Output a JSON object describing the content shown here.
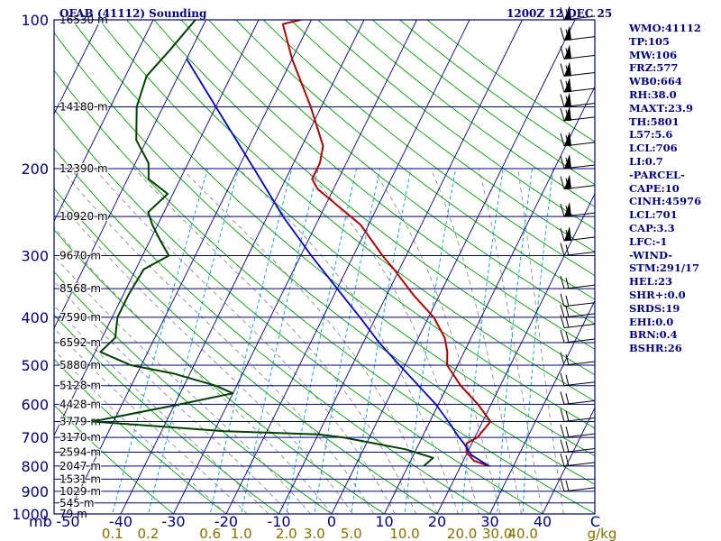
{
  "header": {
    "title": "OFAB (41112) Sounding",
    "time": "1200Z 12 DEC 25"
  },
  "colors": {
    "navy": "#000080",
    "dry_adiabat": "#00a000",
    "moist_adiabat": "#808080",
    "mixing_ratio": "#00a0c0",
    "temperature": "#b00000",
    "dewpoint": "#004000",
    "parcel": "#0000c0",
    "wind": "#000000",
    "tick_temp": "#000080",
    "tick_mix": "#807000"
  },
  "indices": [
    "WMO:41112",
    "TP:105",
    "MW:106",
    "FRZ:577",
    "WB0:664",
    "RH:38.0",
    "MAXT:23.9",
    "TH:5801",
    "L57:5.6",
    "LCL:706",
    "LI:0.7",
    "-PARCEL-",
    "CAPE:10",
    "CINH:45976",
    "LCL:701",
    "CAP:3.3",
    "LFC:-1",
    "-WIND-",
    "STM:291/17",
    "HEL:23",
    "SHR+:0.0",
    "SRDS:19",
    "EHI:0.0",
    "BRN:0.4",
    "BSHR:26"
  ],
  "chart_data": {
    "type": "line",
    "subtype": "skew-t log-p sounding",
    "xlabel": "",
    "ylabel": "",
    "pressure_axis": {
      "unit_label": "mb",
      "range": [
        1000,
        100
      ],
      "scale": "log",
      "tick_labels": [
        "100",
        "200",
        "300",
        "400",
        "500",
        "600",
        "700",
        "800",
        "900",
        "1000"
      ]
    },
    "temperature_axis": {
      "range": [
        -50,
        50
      ],
      "tick_labels": [
        "-50",
        "-40",
        "-30",
        "-20",
        "-10",
        "0",
        "10",
        "20",
        "30",
        "40",
        "C"
      ]
    },
    "mixing_ratio_axis": {
      "unit_label": "g/kg",
      "tick_labels": [
        "0.1",
        "0.2",
        "0.6",
        "1.0",
        "2.0",
        "3.0",
        "5.0",
        "10.0",
        "20.0",
        "30.0",
        "40.0"
      ],
      "values": [
        0.1,
        0.2,
        0.6,
        1.0,
        2.0,
        3.0,
        5.0,
        10.0,
        20.0,
        30.0,
        40.0
      ]
    },
    "height_levels": [
      {
        "p": 100,
        "label": "16530 m"
      },
      {
        "p": 150,
        "label": "14180 m"
      },
      {
        "p": 200,
        "label": "12390 m"
      },
      {
        "p": 250,
        "label": "10920 m"
      },
      {
        "p": 300,
        "label": "9670 m"
      },
      {
        "p": 350,
        "label": "8568 m"
      },
      {
        "p": 400,
        "label": "7590 m"
      },
      {
        "p": 450,
        "label": "6592 m"
      },
      {
        "p": 500,
        "label": "5880 m"
      },
      {
        "p": 550,
        "label": "5128 m"
      },
      {
        "p": 600,
        "label": "4428 m"
      },
      {
        "p": 650,
        "label": "3779 m"
      },
      {
        "p": 700,
        "label": "3170 m"
      },
      {
        "p": 750,
        "label": "2594 m"
      },
      {
        "p": 800,
        "label": "2047 m"
      },
      {
        "p": 850,
        "label": "1531 m"
      },
      {
        "p": 900,
        "label": "1029 m"
      },
      {
        "p": 950,
        "label": "545 m"
      },
      {
        "p": 1000,
        "label": "79 m"
      }
    ],
    "series": [
      {
        "key": "temperature",
        "points": [
          [
            800,
            25.4
          ],
          [
            780,
            22.0
          ],
          [
            750,
            19.8
          ],
          [
            720,
            19.0
          ],
          [
            700,
            20.5
          ],
          [
            650,
            21.5
          ],
          [
            600,
            17.5
          ],
          [
            550,
            12.5
          ],
          [
            500,
            8.0
          ],
          [
            470,
            6.8
          ],
          [
            440,
            5.0
          ],
          [
            400,
            1.0
          ],
          [
            360,
            -5.0
          ],
          [
            320,
            -11.0
          ],
          [
            300,
            -14.5
          ],
          [
            260,
            -21.5
          ],
          [
            240,
            -27.0
          ],
          [
            220,
            -33.0
          ],
          [
            210,
            -35.0
          ],
          [
            195,
            -35.0
          ],
          [
            180,
            -36.0
          ],
          [
            150,
            -42.0
          ],
          [
            120,
            -50.0
          ],
          [
            102,
            -55.0
          ],
          [
            100,
            -52.0
          ],
          [
            95,
            -50.0
          ]
        ]
      },
      {
        "key": "dewpoint",
        "points": [
          [
            800,
            13.0
          ],
          [
            770,
            14.0
          ],
          [
            740,
            8.0
          ],
          [
            700,
            -5.0
          ],
          [
            690,
            -10.0
          ],
          [
            680,
            -28.0
          ],
          [
            650,
            -54.0
          ],
          [
            600,
            -39.0
          ],
          [
            570,
            -30.0
          ],
          [
            550,
            -34.0
          ],
          [
            520,
            -43.0
          ],
          [
            500,
            -52.0
          ],
          [
            470,
            -59.0
          ],
          [
            440,
            -57.5
          ],
          [
            400,
            -59.0
          ],
          [
            360,
            -59.0
          ],
          [
            320,
            -58.5
          ],
          [
            300,
            -55.0
          ],
          [
            280,
            -58.0
          ],
          [
            260,
            -61.0
          ],
          [
            245,
            -63.0
          ],
          [
            225,
            -61.0
          ],
          [
            210,
            -66.0
          ],
          [
            195,
            -67.5
          ],
          [
            175,
            -72.0
          ],
          [
            150,
            -75.0
          ],
          [
            130,
            -76.0
          ],
          [
            115,
            -74.0
          ],
          [
            100,
            -72.0
          ]
        ]
      },
      {
        "key": "parcel",
        "points": [
          [
            800,
            25.4
          ],
          [
            760,
            21.0
          ],
          [
            720,
            18.5
          ],
          [
            700,
            17.0
          ],
          [
            650,
            13.5
          ],
          [
            600,
            9.5
          ],
          [
            550,
            4.5
          ],
          [
            500,
            -1.0
          ],
          [
            450,
            -7.0
          ],
          [
            400,
            -13.0
          ],
          [
            350,
            -20.0
          ],
          [
            300,
            -28.0
          ],
          [
            250,
            -37.0
          ],
          [
            200,
            -47.0
          ],
          [
            150,
            -60.0
          ],
          [
            120,
            -70.0
          ]
        ]
      }
    ],
    "wind_levels": [
      100,
      110,
      120,
      130,
      140,
      150,
      160,
      180,
      200,
      220,
      250,
      280,
      300,
      350,
      380,
      400,
      420,
      450,
      500,
      550,
      600,
      650,
      700,
      750,
      800,
      900
    ]
  }
}
